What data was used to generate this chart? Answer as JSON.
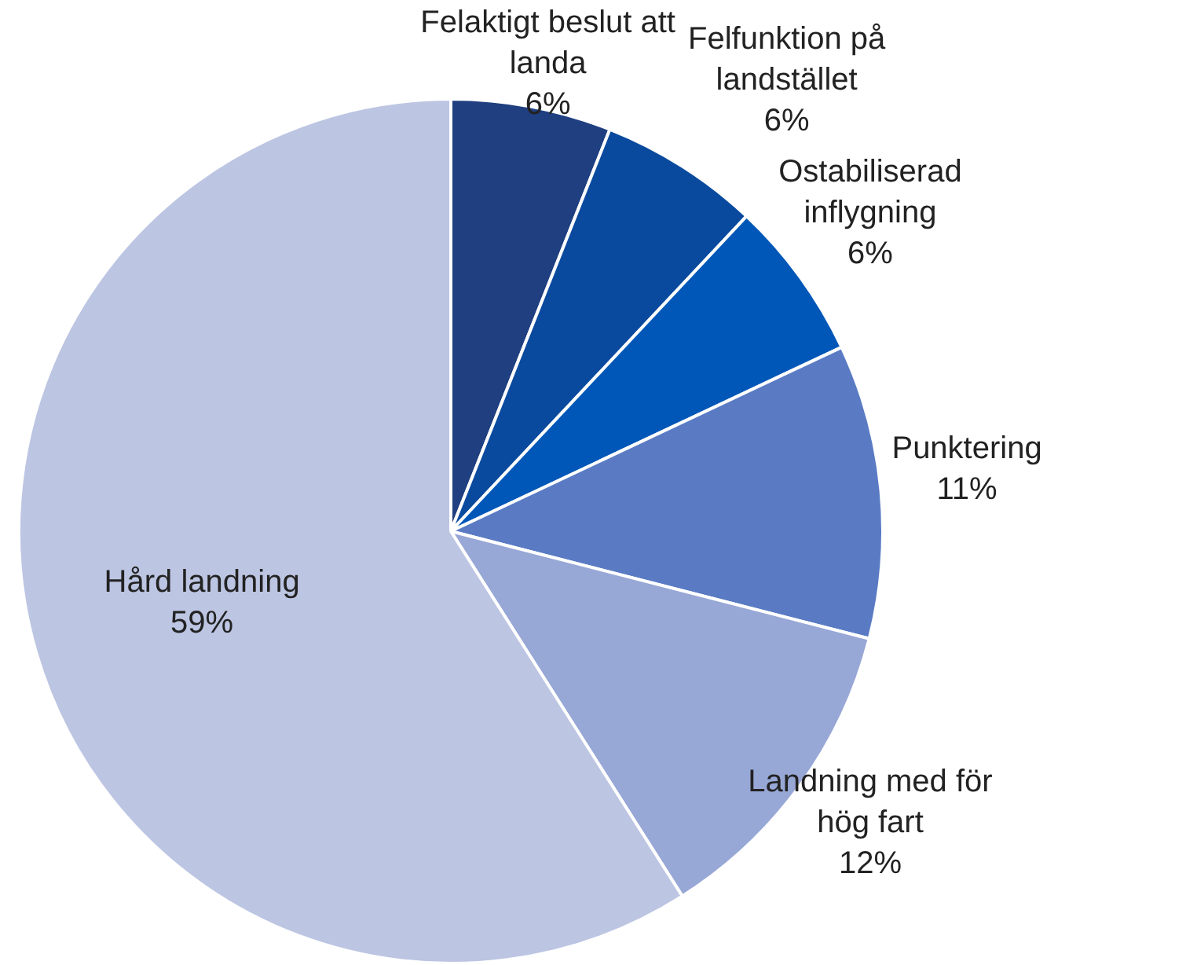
{
  "chart_data": {
    "type": "pie",
    "categories": [
      "Felaktigt beslut att landa",
      "Felfunktion på landstället",
      "Ostabiliserad inflygning",
      "Punktering",
      "Landning med för hög fart",
      "Hård landning"
    ],
    "values": [
      6,
      6,
      6,
      11,
      12,
      59
    ],
    "colors": [
      "#1f3f80",
      "#0a4a9e",
      "#0057b8",
      "#5a7bc4",
      "#97a7d6",
      "#bcc5e2"
    ],
    "value_labels": [
      "6%",
      "6%",
      "6%",
      "11%",
      "12%",
      "59%"
    ],
    "legend": false
  }
}
